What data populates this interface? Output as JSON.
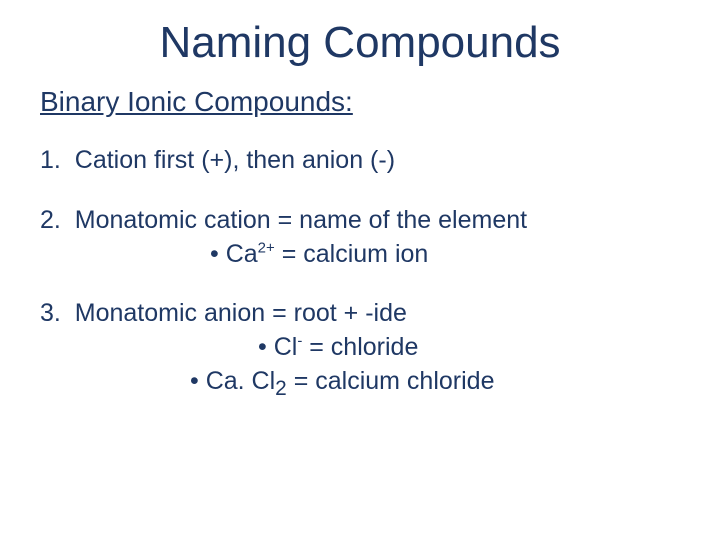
{
  "colors": {
    "text": "#1f3864",
    "background": "#ffffff"
  },
  "typography": {
    "font_family": "Comic Sans MS",
    "title_fontsize": 44,
    "subtitle_fontsize": 28,
    "body_fontsize": 25
  },
  "title": "Naming Compounds",
  "subtitle": "Binary Ionic Compounds:",
  "points": [
    {
      "num": "1.",
      "text": "Cation first (+), then anion (-)"
    },
    {
      "num": "2.",
      "text": "Monatomic cation = name of the element",
      "bullets": [
        {
          "pre": "• Ca",
          "sup": "2+",
          "post": " = calcium ion"
        }
      ]
    },
    {
      "num": "3.",
      "text_pre": "Monatomic anion",
      "text_post": "  =   root  +  -ide",
      "bullets": [
        {
          "pre": "• Cl",
          "sup": "-",
          "post": "  =  chloride"
        },
        {
          "pre": "• Ca. Cl",
          "sub": "2",
          "post": "  =  calcium chloride"
        }
      ]
    }
  ]
}
